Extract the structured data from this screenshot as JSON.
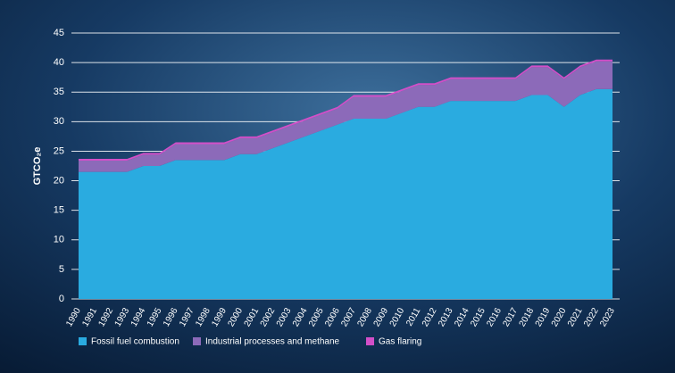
{
  "chart_data": {
    "type": "stacked_area",
    "y_label": "GTCO₂e",
    "categories": [
      "1990",
      "1991",
      "1992",
      "1993",
      "1994",
      "1995",
      "1996",
      "1997",
      "1998",
      "1999",
      "2000",
      "2001",
      "2002",
      "2003",
      "2004",
      "2005",
      "2006",
      "2007",
      "2008",
      "2009",
      "2010",
      "2011",
      "2012",
      "2013",
      "2014",
      "2015",
      "2016",
      "2017",
      "2018",
      "2019",
      "2020",
      "2021",
      "2022",
      "2023"
    ],
    "series": [
      {
        "name": "Fossil fuel combustion",
        "color": "#2aabe0",
        "values": [
          21.5,
          21.5,
          21.5,
          21.5,
          22.5,
          22.5,
          23.5,
          23.5,
          23.5,
          23.5,
          24.5,
          24.5,
          25.5,
          26.5,
          27.5,
          28.5,
          29.5,
          30.5,
          30.5,
          30.5,
          31.5,
          32.5,
          32.5,
          33.5,
          33.5,
          33.5,
          33.5,
          33.5,
          34.5,
          34.5,
          32.5,
          34.5,
          35.5,
          35.5
        ]
      },
      {
        "name": "Industrial processes and methane",
        "color": "#8c6ab9",
        "values": [
          1.9,
          1.9,
          1.9,
          1.9,
          1.9,
          1.9,
          2.7,
          2.7,
          2.7,
          2.7,
          2.7,
          2.7,
          2.7,
          2.7,
          2.7,
          2.7,
          2.7,
          3.7,
          3.7,
          3.7,
          3.7,
          3.7,
          3.7,
          3.7,
          3.7,
          3.7,
          3.7,
          3.7,
          4.7,
          4.7,
          4.7,
          4.7,
          4.7,
          4.7
        ]
      },
      {
        "name": "Gas flaring",
        "color": "#d24fc8",
        "values": [
          0.3,
          0.3,
          0.3,
          0.3,
          0.3,
          0.3,
          0.3,
          0.3,
          0.3,
          0.3,
          0.3,
          0.3,
          0.3,
          0.3,
          0.3,
          0.3,
          0.3,
          0.3,
          0.3,
          0.3,
          0.3,
          0.3,
          0.3,
          0.3,
          0.3,
          0.3,
          0.3,
          0.3,
          0.3,
          0.3,
          0.3,
          0.3,
          0.3,
          0.3
        ]
      }
    ],
    "ylim": [
      0,
      45
    ],
    "yticks": [
      0,
      5,
      10,
      15,
      20,
      25,
      30,
      35,
      40,
      45
    ],
    "grid": true
  }
}
